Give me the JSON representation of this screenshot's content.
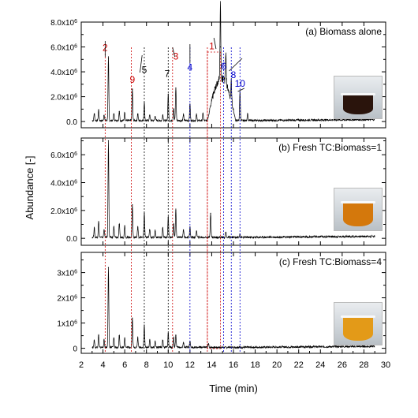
{
  "chart_data": {
    "type": "line",
    "xlabel": "Time (min)",
    "ylabel": "Abundance [-]",
    "xlim": [
      2,
      30
    ],
    "xticks": [
      "2",
      "4",
      "6",
      "8",
      "10",
      "12",
      "14",
      "16",
      "18",
      "20",
      "22",
      "24",
      "26",
      "28",
      "30"
    ],
    "panels": [
      {
        "label": "(a) Biomass alone",
        "ylim": [
          -500000.0,
          8000000.0
        ],
        "yticks": [
          {
            "value": 0,
            "label": "0.0"
          },
          {
            "value": 2000000.0,
            "label": "2.0x10^6"
          },
          {
            "value": 4000000.0,
            "label": "4.0x10^6"
          },
          {
            "value": 6000000.0,
            "label": "6.0x10^6"
          },
          {
            "value": 8000000.0,
            "label": "8.0x10^6"
          }
        ],
        "peaks": [
          [
            3.2,
            600000.0
          ],
          [
            3.6,
            900000.0
          ],
          [
            4.1,
            500000.0
          ],
          [
            4.5,
            5100000.0
          ],
          [
            5.0,
            600000.0
          ],
          [
            5.5,
            800000.0
          ],
          [
            6.0,
            700000.0
          ],
          [
            6.7,
            2600000.0
          ],
          [
            7.2,
            600000.0
          ],
          [
            7.8,
            1500000.0
          ],
          [
            8.3,
            500000.0
          ],
          [
            8.8,
            400000.0
          ],
          [
            9.5,
            500000.0
          ],
          [
            10.0,
            2200000.0
          ],
          [
            10.5,
            1000000.0
          ],
          [
            10.7,
            2700000.0
          ],
          [
            11.4,
            500000.0
          ],
          [
            12.0,
            1400000.0
          ],
          [
            12.6,
            500000.0
          ],
          [
            13.2,
            600000.0
          ],
          [
            14.8,
            6000000.0
          ],
          [
            15.3,
            2500000.0
          ],
          [
            15.8,
            1600000.0
          ],
          [
            16.6,
            2400000.0
          ],
          [
            17.3,
            600000.0
          ]
        ],
        "broad": [
          {
            "from": 13.6,
            "to": 16.2,
            "height": 3800000.0
          }
        ],
        "annotations": [
          {
            "text": "2",
            "x": 4.2,
            "y": 5700000.0,
            "color": "#cc0000"
          },
          {
            "text": "9",
            "x": 6.7,
            "y": 3100000.0,
            "color": "#cc0000"
          },
          {
            "text": "5",
            "x": 7.8,
            "y": 3900000.0,
            "color": "#000000"
          },
          {
            "text": "3",
            "x": 10.7,
            "y": 5000000.0,
            "color": "#cc0000"
          },
          {
            "text": "7",
            "x": 9.9,
            "y": 3600000.0,
            "color": "#000000"
          },
          {
            "text": "4",
            "x": 12.0,
            "y": 4100000.0,
            "color": "#0000cc"
          },
          {
            "text": "1",
            "x": 14.0,
            "y": 5800000.0,
            "color": "#cc0000"
          },
          {
            "text": "6",
            "x": 15.1,
            "y": 4200000.0,
            "color": "#0000cc"
          },
          {
            "text": "8",
            "x": 16.0,
            "y": 3500000.0,
            "color": "#0000cc"
          },
          {
            "text": "10",
            "x": 16.6,
            "y": 2800000.0,
            "color": "#0000cc"
          }
        ]
      },
      {
        "label": "(b) Fresh TC:Biomass=1",
        "ylim": [
          -500000.0,
          7200000.0
        ],
        "yticks": [
          {
            "value": 0,
            "label": "0.0"
          },
          {
            "value": 2000000.0,
            "label": "2.0x10^6"
          },
          {
            "value": 4000000.0,
            "label": "4.0x10^6"
          },
          {
            "value": 6000000.0,
            "label": "6.0x10^6"
          }
        ],
        "peaks": [
          [
            3.2,
            700000.0
          ],
          [
            3.6,
            1200000.0
          ],
          [
            4.1,
            600000.0
          ],
          [
            4.5,
            7000000.0
          ],
          [
            5.0,
            800000.0
          ],
          [
            5.5,
            1000000.0
          ],
          [
            6.0,
            900000.0
          ],
          [
            6.7,
            2400000.0
          ],
          [
            7.2,
            800000.0
          ],
          [
            7.8,
            1800000.0
          ],
          [
            8.3,
            600000.0
          ],
          [
            8.8,
            500000.0
          ],
          [
            9.5,
            700000.0
          ],
          [
            10.0,
            1500000.0
          ],
          [
            10.5,
            1000000.0
          ],
          [
            10.7,
            2000000.0
          ],
          [
            11.4,
            600000.0
          ],
          [
            12.0,
            800000.0
          ],
          [
            12.6,
            500000.0
          ],
          [
            13.9,
            1800000.0
          ],
          [
            15.3,
            400000.0
          ],
          [
            16.6,
            300000.0
          ]
        ],
        "broad": [],
        "annotations": []
      },
      {
        "label": "(c) Fresh TC:Biomass=4",
        "ylim": [
          -200000.0,
          3800000.0
        ],
        "yticks": [
          {
            "value": 0,
            "label": "0"
          },
          {
            "value": 1000000.0,
            "label": "1x10^6"
          },
          {
            "value": 2000000.0,
            "label": "2x10^6"
          },
          {
            "value": 3000000.0,
            "label": "3x10^6"
          }
        ],
        "peaks": [
          [
            3.2,
            300000.0
          ],
          [
            3.6,
            500000.0
          ],
          [
            4.1,
            300000.0
          ],
          [
            4.5,
            3200000.0
          ],
          [
            5.0,
            400000.0
          ],
          [
            5.5,
            500000.0
          ],
          [
            6.0,
            400000.0
          ],
          [
            6.7,
            1200000.0
          ],
          [
            7.2,
            400000.0
          ],
          [
            7.8,
            900000.0
          ],
          [
            8.3,
            300000.0
          ],
          [
            8.8,
            250000.0
          ],
          [
            9.5,
            300000.0
          ],
          [
            10.0,
            600000.0
          ],
          [
            10.5,
            400000.0
          ],
          [
            10.7,
            500000.0
          ],
          [
            11.4,
            200000.0
          ],
          [
            12.0,
            250000.0
          ],
          [
            13.7,
            150000.0
          ]
        ],
        "broad": [],
        "annotations": []
      }
    ],
    "guide_lines": [
      {
        "x": 4.2,
        "color": "#cc0000"
      },
      {
        "x": 6.6,
        "color": "#cc0000"
      },
      {
        "x": 7.8,
        "color": "#000000"
      },
      {
        "x": 10.0,
        "color": "#000000"
      },
      {
        "x": 10.4,
        "color": "#cc0000"
      },
      {
        "x": 12.0,
        "color": "#0000cc"
      },
      {
        "x": 13.6,
        "color": "#cc0000"
      },
      {
        "x": 15.1,
        "color": "#0000cc"
      },
      {
        "x": 15.8,
        "color": "#0000cc"
      },
      {
        "x": 16.6,
        "color": "#0000cc"
      }
    ],
    "photos": [
      {
        "liquid": "#2a140c",
        "level": 0.45
      },
      {
        "liquid": "#d4780c",
        "level": 0.55
      },
      {
        "liquid": "#e39a18",
        "level": 0.55
      }
    ]
  }
}
